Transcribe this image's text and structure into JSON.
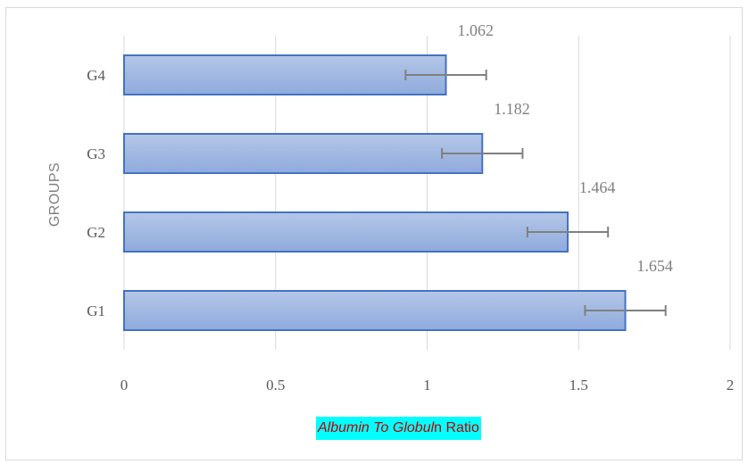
{
  "chart_data": {
    "type": "bar",
    "orientation": "horizontal",
    "categories": [
      "G4",
      "G3",
      "G2",
      "G1"
    ],
    "values": [
      1.062,
      1.182,
      1.464,
      1.654
    ],
    "error_bars": [
      0.133,
      0.133,
      0.133,
      0.133
    ],
    "data_labels": [
      "1.062",
      "1.182",
      "1.464",
      "1.654"
    ],
    "x_ticks": [
      "0",
      "0.5",
      "1",
      "1.5",
      "2"
    ],
    "xlim": [
      0,
      2
    ],
    "ylabel": "GROUPS",
    "xlabel_italic": "Albumin To Globul",
    "xlabel_rest": "n Ratio",
    "grid": "vertical",
    "legend": "none",
    "colors": {
      "bar_fill_top": "#b4c7e7",
      "bar_fill_bottom": "#8faadc",
      "bar_stroke": "#4472c4",
      "error_bar": "#808080",
      "grid": "#d9d9d9",
      "xlabel_bg": "#00ffff",
      "xlabel_text": "#c00000"
    }
  }
}
